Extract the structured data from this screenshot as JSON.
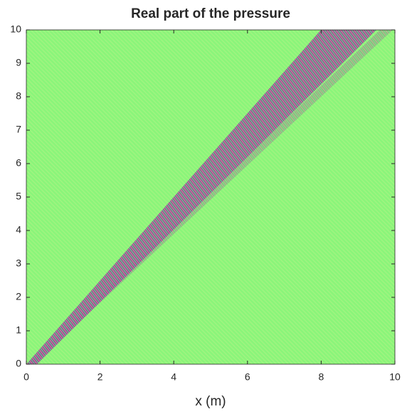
{
  "chart_data": {
    "type": "heatmap",
    "title": "Real part of the pressure",
    "xlabel": "x (m)",
    "xlim": [
      0,
      10
    ],
    "ylim": [
      0,
      10
    ],
    "xticks": [
      0,
      2,
      4,
      6,
      8,
      10
    ],
    "yticks": [
      0,
      1,
      2,
      3,
      4,
      5,
      6,
      7,
      8,
      9,
      10
    ],
    "color": "#8af57a"
  }
}
